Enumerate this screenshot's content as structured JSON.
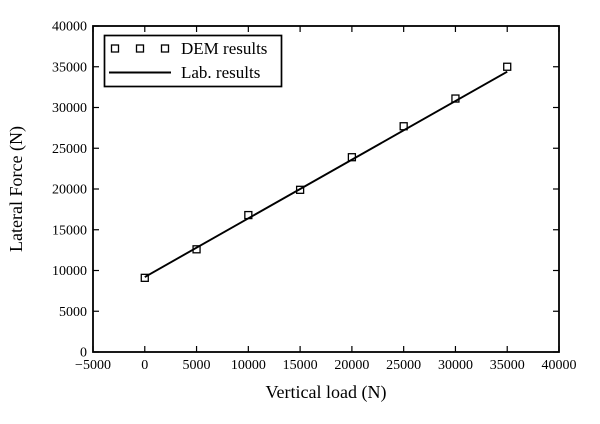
{
  "figure": {
    "background": "#ffffff",
    "foreground": "#000000"
  },
  "chart_data": {
    "type": "scatter",
    "title": "",
    "xlabel": "Vertical load (N)",
    "ylabel": "Lateral Force (N)",
    "xlim": [
      -5000,
      40000
    ],
    "ylim": [
      0,
      40000
    ],
    "xticks": [
      -5000,
      0,
      5000,
      10000,
      15000,
      20000,
      25000,
      30000,
      35000,
      40000
    ],
    "yticks": [
      0,
      5000,
      10000,
      15000,
      20000,
      25000,
      30000,
      35000,
      40000
    ],
    "grid": false,
    "tick_style": "inward-all-four-sides",
    "legend": {
      "position": "upper-left",
      "entries": [
        {
          "label": "DEM results",
          "handle": "open-square-markers"
        },
        {
          "label": "Lab. results",
          "handle": "solid-line"
        }
      ]
    },
    "series": [
      {
        "name": "DEM results",
        "type": "scatter",
        "marker": "open-square",
        "color": "#000000",
        "x": [
          0,
          5000,
          10000,
          15000,
          20000,
          25000,
          30000,
          35000
        ],
        "y": [
          9100,
          12600,
          16800,
          19900,
          23900,
          27700,
          31100,
          35000
        ]
      },
      {
        "name": "Lab. results",
        "type": "line",
        "color": "#000000",
        "x": [
          0,
          35000
        ],
        "y": [
          9200,
          34400
        ]
      }
    ]
  }
}
